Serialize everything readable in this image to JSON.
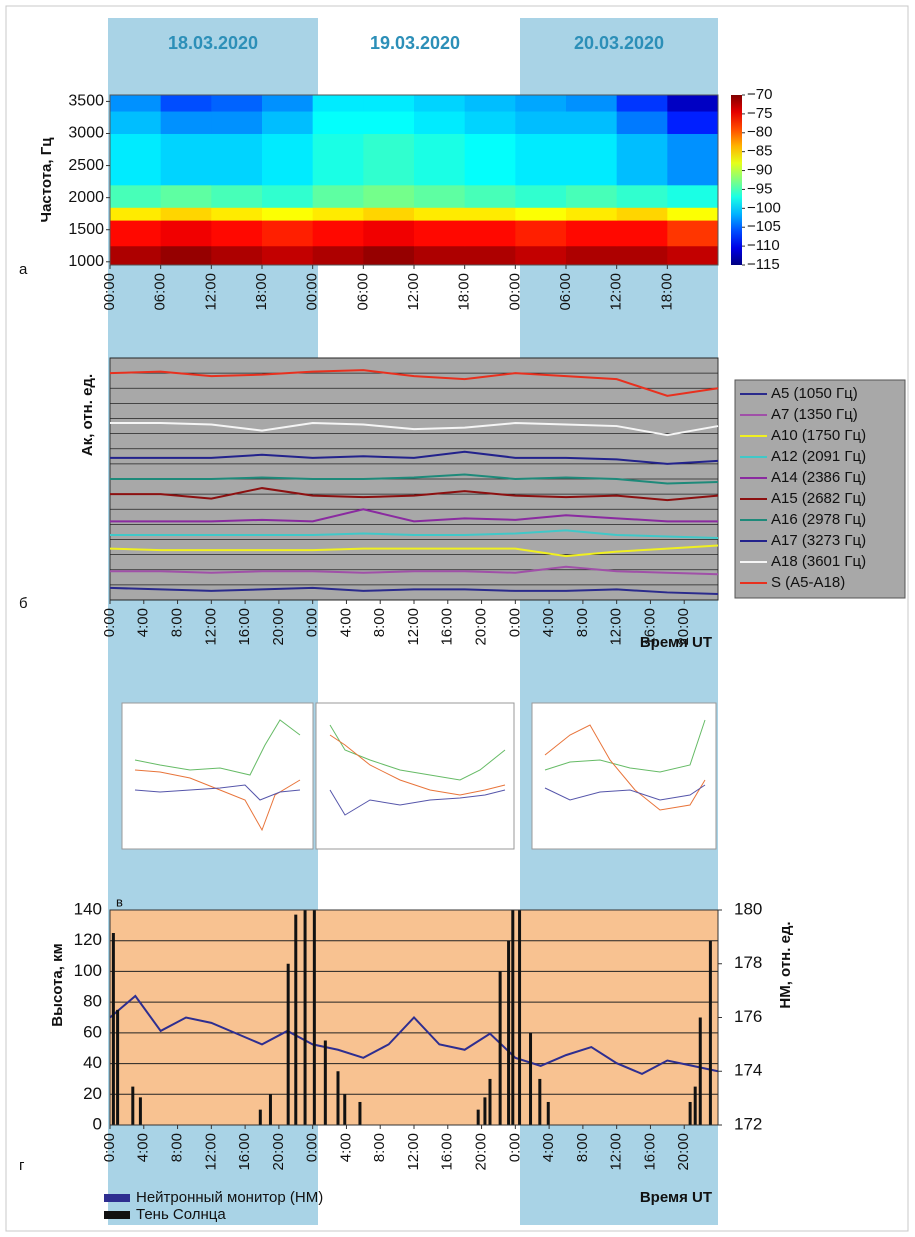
{
  "dates": [
    "18.03.2020",
    "19.03.2020",
    "20.03.2020"
  ],
  "panel_labels": [
    "а",
    "б",
    "в",
    "г"
  ],
  "chart_data": [
    {
      "type": "heatmap",
      "ylabel": "Частота, Гц",
      "colormap": "jet",
      "xlim": [
        0,
        72
      ],
      "ylim": [
        950,
        3600
      ],
      "xticks": [
        {
          "value": 0,
          "label": "00:00"
        },
        {
          "value": 6,
          "label": "06:00"
        },
        {
          "value": 12,
          "label": "12:00"
        },
        {
          "value": 18,
          "label": "18:00"
        },
        {
          "value": 24,
          "label": "00:00"
        },
        {
          "value": 30,
          "label": "06:00"
        },
        {
          "value": 36,
          "label": "12:00"
        },
        {
          "value": 42,
          "label": "18:00"
        },
        {
          "value": 48,
          "label": "00:00"
        },
        {
          "value": 54,
          "label": "06:00"
        },
        {
          "value": 60,
          "label": "12:00"
        },
        {
          "value": 66,
          "label": "18:00"
        }
      ],
      "yticks": [
        1000,
        1500,
        2000,
        2500,
        3000,
        3500
      ],
      "time_bins": [
        0,
        6,
        12,
        18,
        24,
        30,
        36,
        42,
        48,
        54,
        60,
        66,
        72
      ],
      "freq_bins": [
        950,
        1250,
        1650,
        1850,
        2200,
        3000,
        3350,
        3600
      ],
      "z": [
        [
          -72,
          -71,
          -72,
          -73,
          -72,
          -71,
          -72,
          -72,
          -73,
          -72,
          -72,
          -73
        ],
        [
          -76,
          -75,
          -76,
          -77,
          -76,
          -75,
          -76,
          -76,
          -77,
          -76,
          -76,
          -78
        ],
        [
          -86,
          -85,
          -86,
          -87,
          -86,
          -85,
          -86,
          -86,
          -87,
          -86,
          -85,
          -87
        ],
        [
          -95,
          -94,
          -95,
          -96,
          -94,
          -93,
          -94,
          -95,
          -96,
          -95,
          -96,
          -97
        ],
        [
          -99,
          -100,
          -100,
          -99,
          -97,
          -96,
          -97,
          -98,
          -99,
          -99,
          -101,
          -103
        ],
        [
          -101,
          -103,
          -103,
          -101,
          -98,
          -98,
          -99,
          -100,
          -101,
          -101,
          -104,
          -108
        ],
        [
          -103,
          -106,
          -105,
          -103,
          -99,
          -99,
          -100,
          -101,
          -102,
          -103,
          -107,
          -112
        ]
      ],
      "zlim": [
        -115,
        -70
      ],
      "zticks": [
        {
          "value": -70,
          "label": "−70"
        },
        {
          "value": -75,
          "label": "−75"
        },
        {
          "value": -80,
          "label": "−80"
        },
        {
          "value": -85,
          "label": "−85"
        },
        {
          "value": -90,
          "label": "−90"
        },
        {
          "value": -95,
          "label": "−95"
        },
        {
          "value": -100,
          "label": "−100"
        },
        {
          "value": -105,
          "label": "−105"
        },
        {
          "value": -110,
          "label": "−110"
        },
        {
          "value": -115,
          "label": "−115"
        }
      ]
    },
    {
      "type": "line",
      "ylabel": "Ак, отн. ед.",
      "xlabel": "Время UT",
      "background": "#a8a8a8",
      "grid": true,
      "legend": "right",
      "xlim": [
        0,
        72
      ],
      "ylim": [
        0,
        16
      ],
      "xticks": [
        {
          "value": 0,
          "label": "0:00"
        },
        {
          "value": 4,
          "label": "4:00"
        },
        {
          "value": 8,
          "label": "8:00"
        },
        {
          "value": 12,
          "label": "12:00"
        },
        {
          "value": 16,
          "label": "16:00"
        },
        {
          "value": 20,
          "label": "20:00"
        },
        {
          "value": 24,
          "label": "0:00"
        },
        {
          "value": 28,
          "label": "4:00"
        },
        {
          "value": 32,
          "label": "8:00"
        },
        {
          "value": 36,
          "label": "12:00"
        },
        {
          "value": 40,
          "label": "16:00"
        },
        {
          "value": 44,
          "label": "20:00"
        },
        {
          "value": 48,
          "label": "0:00"
        },
        {
          "value": 52,
          "label": "4:00"
        },
        {
          "value": 56,
          "label": "8:00"
        },
        {
          "value": 60,
          "label": "12:00"
        },
        {
          "value": 64,
          "label": "16:00"
        },
        {
          "value": 68,
          "label": "20:00"
        }
      ],
      "x": [
        0,
        6,
        12,
        18,
        24,
        30,
        36,
        42,
        48,
        54,
        60,
        66,
        72
      ],
      "series": [
        {
          "name": "A5 (1050 Гц)",
          "color": "#2a2a8c",
          "values": [
            0.8,
            0.7,
            0.6,
            0.7,
            0.8,
            0.6,
            0.7,
            0.7,
            0.6,
            0.6,
            0.7,
            0.5,
            0.4
          ]
        },
        {
          "name": "A7 (1350 Гц)",
          "color": "#a050a8",
          "values": [
            1.9,
            1.9,
            1.8,
            1.9,
            1.9,
            1.8,
            1.9,
            1.9,
            1.8,
            2.2,
            1.9,
            1.8,
            1.7
          ]
        },
        {
          "name": "A10 (1750 Гц)",
          "color": "#f0f020",
          "values": [
            3.4,
            3.3,
            3.3,
            3.3,
            3.3,
            3.4,
            3.4,
            3.4,
            3.4,
            2.9,
            3.2,
            3.4,
            3.6
          ]
        },
        {
          "name": "A12 (2091 Гц)",
          "color": "#40c8c8",
          "values": [
            4.3,
            4.3,
            4.3,
            4.3,
            4.3,
            4.4,
            4.3,
            4.3,
            4.4,
            4.6,
            4.3,
            4.2,
            4.1
          ]
        },
        {
          "name": "A14 (2386 Гц)",
          "color": "#8a2aa0",
          "values": [
            5.2,
            5.2,
            5.2,
            5.3,
            5.2,
            6.0,
            5.2,
            5.4,
            5.3,
            5.6,
            5.4,
            5.2,
            5.2
          ]
        },
        {
          "name": "A15 (2682 Гц)",
          "color": "#8c1010",
          "values": [
            7.0,
            7.0,
            6.7,
            7.4,
            6.9,
            6.8,
            6.9,
            7.2,
            6.9,
            6.8,
            6.9,
            6.6,
            6.9
          ]
        },
        {
          "name": "A16 (2978 Гц)",
          "color": "#1e8a7a",
          "values": [
            8.0,
            8.0,
            8.0,
            8.1,
            8.0,
            8.0,
            8.1,
            8.3,
            8.0,
            8.1,
            8.0,
            7.7,
            7.8
          ]
        },
        {
          "name": "A17 (3273 Гц)",
          "color": "#22228c",
          "values": [
            9.4,
            9.4,
            9.4,
            9.6,
            9.4,
            9.5,
            9.4,
            9.8,
            9.4,
            9.4,
            9.3,
            9.0,
            9.2
          ]
        },
        {
          "name": "A18 (3601 Гц)",
          "color": "#f5f5f5",
          "values": [
            11.7,
            11.7,
            11.6,
            11.2,
            11.7,
            11.6,
            11.3,
            11.4,
            11.7,
            11.6,
            11.5,
            10.9,
            11.5
          ]
        },
        {
          "name": "S (A5-A18)",
          "color": "#e8301e",
          "values": [
            15.0,
            15.1,
            14.8,
            14.9,
            15.1,
            15.2,
            14.8,
            14.6,
            15.0,
            14.8,
            14.6,
            13.5,
            14.0
          ]
        }
      ]
    },
    {
      "type": "combo",
      "ylabel": "Высота, км",
      "y2label": "НМ, отн. ед.",
      "xlabel": "Время UT",
      "background": "#f8c291",
      "grid": true,
      "xlim": [
        0,
        72
      ],
      "ylim": [
        0,
        140
      ],
      "y2lim": [
        172,
        180
      ],
      "yticks": [
        0,
        20,
        40,
        60,
        80,
        100,
        120,
        140
      ],
      "y2ticks": [
        172,
        174,
        176,
        178,
        180
      ],
      "xticks": [
        {
          "value": 0,
          "label": "0:00"
        },
        {
          "value": 4,
          "label": "4:00"
        },
        {
          "value": 8,
          "label": "8:00"
        },
        {
          "value": 12,
          "label": "12:00"
        },
        {
          "value": 16,
          "label": "16:00"
        },
        {
          "value": 20,
          "label": "20:00"
        },
        {
          "value": 24,
          "label": "0:00"
        },
        {
          "value": 28,
          "label": "4:00"
        },
        {
          "value": 32,
          "label": "8:00"
        },
        {
          "value": 36,
          "label": "12:00"
        },
        {
          "value": 40,
          "label": "16:00"
        },
        {
          "value": 44,
          "label": "20:00"
        },
        {
          "value": 48,
          "label": "0:00"
        },
        {
          "value": 52,
          "label": "4:00"
        },
        {
          "value": 56,
          "label": "8:00"
        },
        {
          "value": 60,
          "label": "12:00"
        },
        {
          "value": 64,
          "label": "16:00"
        },
        {
          "value": 68,
          "label": "20:00"
        }
      ],
      "series": [
        {
          "name": "Нейтронный монитор (НМ)",
          "color": "#2e2e90",
          "type": "line",
          "axis": "y2",
          "x": [
            0,
            3,
            6,
            9,
            12,
            15,
            18,
            21,
            24,
            27,
            30,
            33,
            36,
            39,
            42,
            45,
            48,
            51,
            54,
            57,
            60,
            63,
            66,
            69,
            72
          ],
          "values": [
            176,
            176.8,
            175.5,
            176,
            175.8,
            175.4,
            175,
            175.5,
            175,
            174.8,
            174.5,
            175,
            176,
            175,
            174.8,
            175.4,
            174.5,
            174.2,
            174.6,
            174.9,
            174.3,
            173.9,
            174.4,
            174.2,
            174
          ]
        },
        {
          "name": "Тень Солнца",
          "color": "#111111",
          "type": "bar",
          "x": [
            0.4,
            0.9,
            2.7,
            3.6,
            17.8,
            19,
            21.1,
            22,
            23.1,
            24.2,
            25.5,
            27,
            27.8,
            29.6,
            43.6,
            44.4,
            45,
            46.2,
            47.2,
            47.7,
            48.5,
            49.8,
            50.9,
            51.9,
            68.7,
            69.3,
            69.9,
            71.1
          ],
          "values": [
            125,
            75,
            25,
            18,
            10,
            20,
            105,
            137,
            140,
            140,
            55,
            35,
            20,
            15,
            10,
            18,
            30,
            100,
            120,
            140,
            140,
            60,
            30,
            15,
            15,
            25,
            70,
            120
          ]
        }
      ]
    }
  ]
}
